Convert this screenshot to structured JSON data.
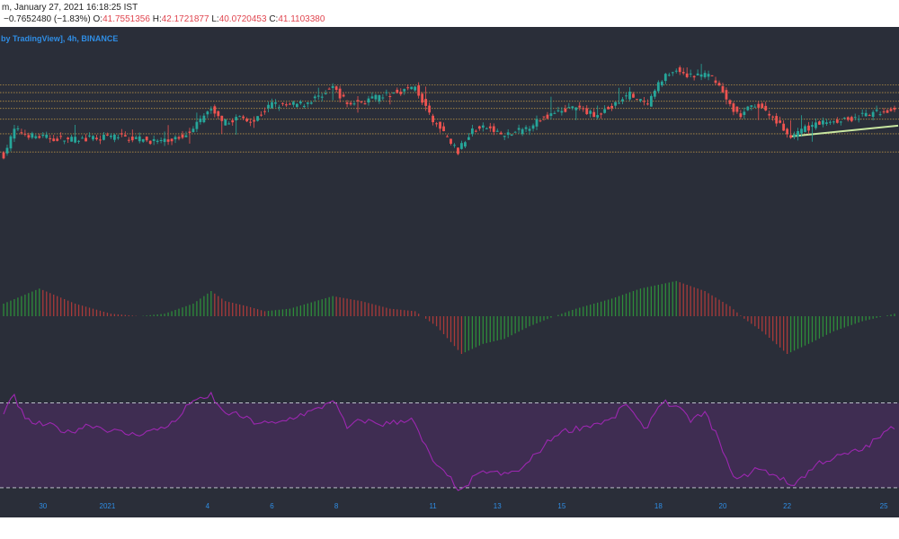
{
  "header": {
    "line1": "m, January 27, 2021 16:18:25 IST",
    "change": "−0.7652480 (−1.83%)",
    "o_label": "O:",
    "o_value": "41.7551356",
    "h_label": "H:",
    "h_value": "42.1721877",
    "l_label": "L:",
    "l_value": "40.0720453",
    "c_label": "C:",
    "c_value": "41.1103380"
  },
  "credit": " by TradingView], 4h, BINANCE",
  "colors": {
    "background": "#2a2e39",
    "up": "#26a69a",
    "down": "#ef5350",
    "hist_up": "#2e8b3a",
    "hist_down": "#a83a3a",
    "rsi_line": "#9c27b0",
    "rsi_band": "#3f2d52",
    "hline": "#d6a64a",
    "trendline": "#c8e6a0",
    "axis_text": "#2f8de4"
  },
  "chart_data": {
    "type": "candlestick",
    "title": "",
    "xlabel": "",
    "ylabel": "",
    "x_ticks": [
      {
        "label": "30",
        "candle": 11
      },
      {
        "label": "2021",
        "candle": 29
      },
      {
        "label": "4",
        "candle": 57
      },
      {
        "label": "6",
        "candle": 75
      },
      {
        "label": "8",
        "candle": 93
      },
      {
        "label": "11",
        "candle": 120
      },
      {
        "label": "13",
        "candle": 138
      },
      {
        "label": "15",
        "candle": 156
      },
      {
        "label": "18",
        "candle": 183
      },
      {
        "label": "20",
        "candle": 201
      },
      {
        "label": "22",
        "candle": 219
      },
      {
        "label": "25",
        "candle": 246
      }
    ],
    "price_ylim": [
      36.0,
      48.0
    ],
    "horizontal_levels": [
      46.16,
      45.52,
      44.8,
      44.2,
      43.3,
      42.08,
      40.56
    ],
    "trendline": {
      "from": [
        220,
        41.86
      ],
      "to": [
        249,
        42.76
      ]
    },
    "price_anchors": [
      [
        0,
        40.3
      ],
      [
        3,
        42.4
      ],
      [
        8,
        41.9
      ],
      [
        14,
        41.7
      ],
      [
        20,
        41.6
      ],
      [
        26,
        41.7
      ],
      [
        32,
        41.9
      ],
      [
        38,
        41.6
      ],
      [
        45,
        41.4
      ],
      [
        50,
        41.9
      ],
      [
        55,
        43.2
      ],
      [
        58,
        44.2
      ],
      [
        61,
        42.9
      ],
      [
        66,
        43.5
      ],
      [
        70,
        43.2
      ],
      [
        75,
        44.6
      ],
      [
        78,
        44.4
      ],
      [
        84,
        44.6
      ],
      [
        88,
        45.2
      ],
      [
        92,
        46.0
      ],
      [
        96,
        44.6
      ],
      [
        101,
        44.8
      ],
      [
        108,
        45.4
      ],
      [
        115,
        46.0
      ],
      [
        119,
        43.6
      ],
      [
        123,
        42.1
      ],
      [
        127,
        40.6
      ],
      [
        131,
        42.4
      ],
      [
        135,
        42.6
      ],
      [
        140,
        41.9
      ],
      [
        145,
        42.4
      ],
      [
        150,
        43.3
      ],
      [
        155,
        44.1
      ],
      [
        160,
        44.2
      ],
      [
        165,
        43.7
      ],
      [
        170,
        44.3
      ],
      [
        175,
        45.4
      ],
      [
        180,
        44.4
      ],
      [
        184,
        46.7
      ],
      [
        188,
        47.4
      ],
      [
        192,
        46.9
      ],
      [
        196,
        47.0
      ],
      [
        199,
        46.6
      ],
      [
        203,
        44.4
      ],
      [
        206,
        43.6
      ],
      [
        210,
        44.6
      ],
      [
        216,
        43.2
      ],
      [
        220,
        41.8
      ],
      [
        224,
        42.5
      ],
      [
        230,
        43.2
      ],
      [
        236,
        43.3
      ],
      [
        242,
        43.7
      ],
      [
        249,
        44.2
      ]
    ],
    "macd_anchors": [
      [
        0,
        0.25
      ],
      [
        10,
        0.55
      ],
      [
        20,
        0.25
      ],
      [
        30,
        0.05
      ],
      [
        38,
        0.0
      ],
      [
        45,
        0.05
      ],
      [
        53,
        0.25
      ],
      [
        58,
        0.5
      ],
      [
        62,
        0.3
      ],
      [
        68,
        0.2
      ],
      [
        73,
        0.1
      ],
      [
        80,
        0.15
      ],
      [
        92,
        0.4
      ],
      [
        100,
        0.3
      ],
      [
        108,
        0.15
      ],
      [
        115,
        0.1
      ],
      [
        121,
        -0.2
      ],
      [
        128,
        -0.75
      ],
      [
        134,
        -0.55
      ],
      [
        140,
        -0.45
      ],
      [
        147,
        -0.2
      ],
      [
        154,
        0.0
      ],
      [
        160,
        0.15
      ],
      [
        170,
        0.35
      ],
      [
        178,
        0.55
      ],
      [
        188,
        0.7
      ],
      [
        196,
        0.5
      ],
      [
        203,
        0.2
      ],
      [
        207,
        -0.05
      ],
      [
        212,
        -0.3
      ],
      [
        219,
        -0.75
      ],
      [
        225,
        -0.55
      ],
      [
        232,
        -0.3
      ],
      [
        240,
        -0.1
      ],
      [
        249,
        0.05
      ]
    ],
    "rsi_band": [
      30,
      70
    ],
    "rsi_ylim": [
      27,
      80
    ],
    "rsi_anchors": [
      [
        0,
        66
      ],
      [
        3,
        73
      ],
      [
        6,
        62
      ],
      [
        10,
        60
      ],
      [
        14,
        59
      ],
      [
        18,
        56
      ],
      [
        24,
        60
      ],
      [
        30,
        57
      ],
      [
        36,
        55
      ],
      [
        42,
        57
      ],
      [
        48,
        61
      ],
      [
        53,
        72
      ],
      [
        56,
        71
      ],
      [
        58,
        74
      ],
      [
        61,
        66
      ],
      [
        66,
        64
      ],
      [
        70,
        61
      ],
      [
        76,
        60
      ],
      [
        82,
        64
      ],
      [
        88,
        67
      ],
      [
        92,
        72
      ],
      [
        96,
        58
      ],
      [
        100,
        62
      ],
      [
        106,
        60
      ],
      [
        110,
        61
      ],
      [
        114,
        63
      ],
      [
        117,
        52
      ],
      [
        121,
        40
      ],
      [
        125,
        34
      ],
      [
        128,
        28
      ],
      [
        131,
        34
      ],
      [
        135,
        38
      ],
      [
        140,
        36
      ],
      [
        145,
        39
      ],
      [
        150,
        48
      ],
      [
        155,
        56
      ],
      [
        160,
        58
      ],
      [
        165,
        60
      ],
      [
        170,
        62
      ],
      [
        174,
        70
      ],
      [
        179,
        57
      ],
      [
        184,
        71
      ],
      [
        188,
        68
      ],
      [
        192,
        62
      ],
      [
        196,
        65
      ],
      [
        199,
        56
      ],
      [
        203,
        38
      ],
      [
        206,
        34
      ],
      [
        210,
        39
      ],
      [
        216,
        36
      ],
      [
        220,
        31
      ],
      [
        224,
        36
      ],
      [
        228,
        42
      ],
      [
        234,
        45
      ],
      [
        240,
        48
      ],
      [
        249,
        59
      ]
    ]
  }
}
